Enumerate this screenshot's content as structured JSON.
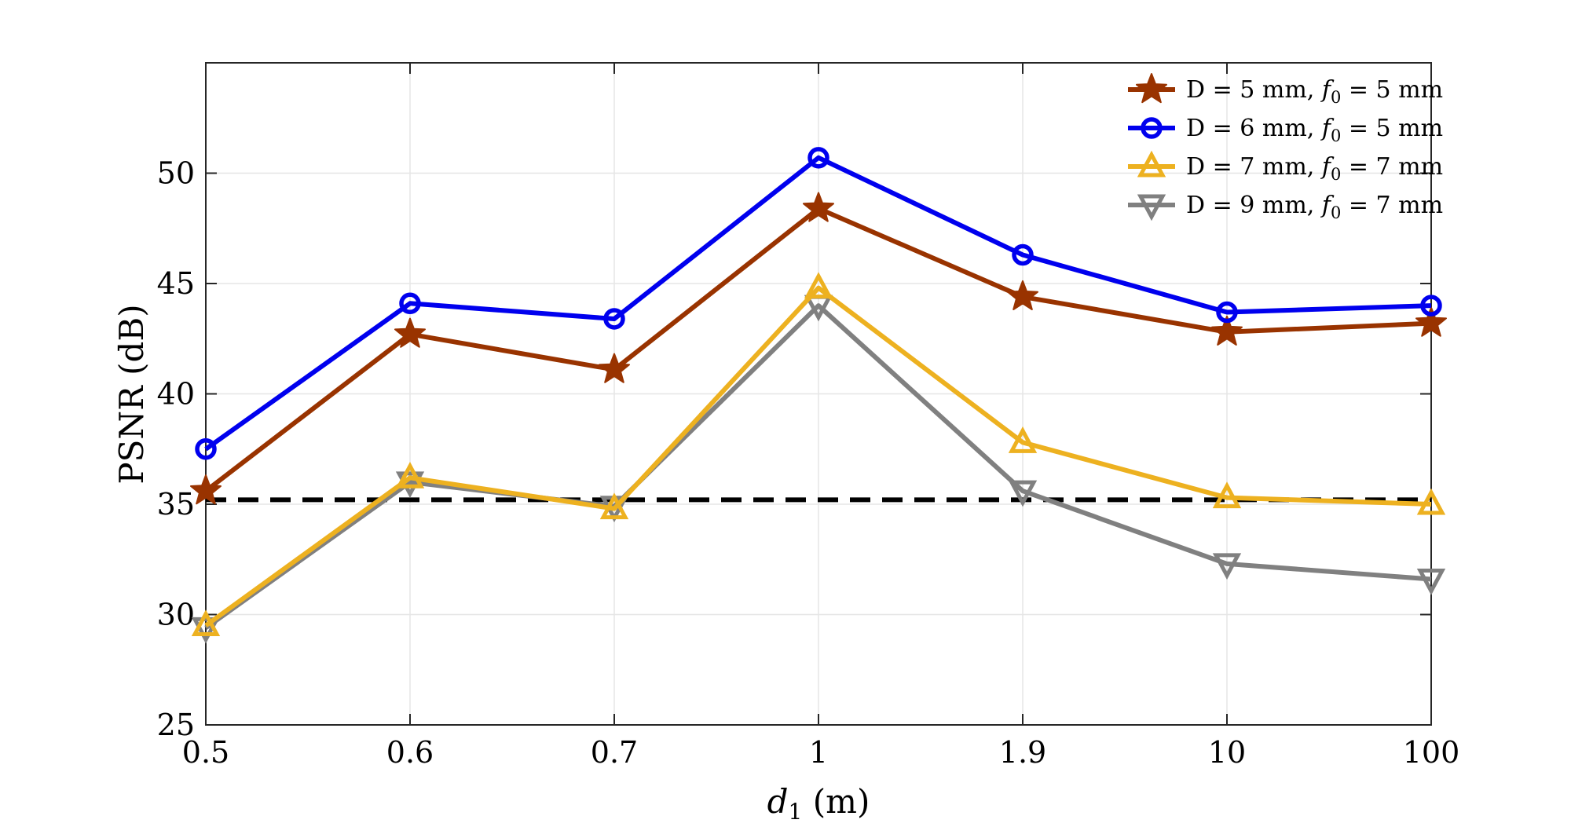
{
  "chart_data": {
    "type": "line",
    "title": "",
    "xlabel": "d",
    "xlabel_sub": "1",
    "xlabel_unit": " (m)",
    "ylabel": "PSNR (dB)",
    "categories": [
      "0.5",
      "0.6",
      "0.7",
      "1",
      "1.9",
      "10",
      "100"
    ],
    "ylim": [
      25,
      55
    ],
    "yticks": [
      25,
      30,
      35,
      40,
      45,
      50
    ],
    "grid": true,
    "legend_position": "top-right",
    "series": [
      {
        "name": "D = 5 mm, f0 = 5 mm",
        "legend": {
          "pre": "D = 5 mm, ",
          "var": "f",
          "sub": "0",
          "post": " = 5 mm"
        },
        "marker": "star",
        "color": "#993300",
        "values": [
          35.6,
          42.7,
          41.1,
          48.4,
          44.4,
          42.8,
          43.2
        ]
      },
      {
        "name": "D = 6 mm, f0 = 5 mm",
        "legend": {
          "pre": "D = 6 mm, ",
          "var": "f",
          "sub": "0",
          "post": " = 5 mm"
        },
        "marker": "circle",
        "color": "#0000ee",
        "values": [
          37.5,
          44.1,
          43.4,
          50.7,
          46.3,
          43.7,
          44.0
        ]
      },
      {
        "name": "D = 7 mm, f0 = 7 mm",
        "legend": {
          "pre": "D = 7 mm, ",
          "var": "f",
          "sub": "0",
          "post": " = 7 mm"
        },
        "marker": "triangle-up",
        "color": "#edb120",
        "values": [
          29.5,
          36.2,
          34.8,
          44.8,
          37.8,
          35.3,
          35.0
        ]
      },
      {
        "name": "D = 9 mm, f0 = 7 mm",
        "legend": {
          "pre": "D = 9 mm, ",
          "var": "f",
          "sub": "0",
          "post": " = 7 mm"
        },
        "marker": "triangle-down",
        "color": "#808080",
        "values": [
          29.4,
          36.0,
          34.9,
          44.0,
          35.6,
          32.3,
          31.6
        ]
      }
    ],
    "reference_line": {
      "value": 35.2,
      "color": "#000000",
      "style": "dashed"
    }
  }
}
